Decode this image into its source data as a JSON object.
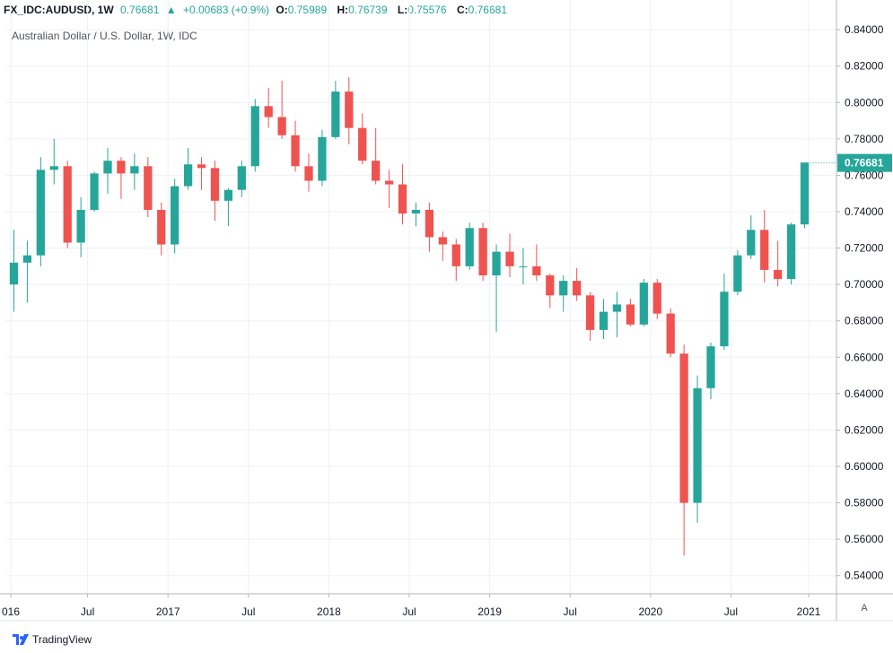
{
  "header": {
    "symbol": "FX_IDC:AUDUSD, 1W",
    "last": "0.76681",
    "change_arrow": "▲",
    "change": "+0.00683 (+0.9%)",
    "o_label": "O:",
    "o_value": "0.75989",
    "h_label": "H:",
    "h_value": "0.76739",
    "l_label": "L:",
    "l_value": "0.75576",
    "c_label": "C:",
    "c_value": "0.76681"
  },
  "colors": {
    "up": "#26a69a",
    "down": "#ef5350",
    "grid": "#eef0f3",
    "axis_text": "#131722"
  },
  "footer": {
    "brand": "TradingView",
    "scale_button": "A"
  },
  "chart_data": {
    "type": "candlestick",
    "title": "Australian Dollar / U.S. Dollar, 1W, IDC",
    "price_label": "0.76681",
    "y_ticks": [
      "0.84000",
      "0.82000",
      "0.80000",
      "0.78000",
      "0.76000",
      "0.74000",
      "0.72000",
      "0.70000",
      "0.68000",
      "0.66000",
      "0.64000",
      "0.62000",
      "0.60000",
      "0.58000",
      "0.56000",
      "0.54000"
    ],
    "x_ticks": [
      "016",
      "Jul",
      "2017",
      "Jul",
      "2018",
      "Jul",
      "2019",
      "Jul",
      "2020",
      "Jul",
      "2021"
    ],
    "ylim": [
      0.53,
      0.845
    ],
    "grid": true,
    "series": [
      {
        "date": "2016-01",
        "o": 0.7,
        "h": 0.73,
        "l": 0.685,
        "c": 0.712
      },
      {
        "date": "2016-02",
        "o": 0.712,
        "h": 0.724,
        "l": 0.69,
        "c": 0.716
      },
      {
        "date": "2016-03",
        "o": 0.716,
        "h": 0.77,
        "l": 0.71,
        "c": 0.763
      },
      {
        "date": "2016-04",
        "o": 0.763,
        "h": 0.78,
        "l": 0.755,
        "c": 0.765
      },
      {
        "date": "2016-05",
        "o": 0.765,
        "h": 0.768,
        "l": 0.72,
        "c": 0.723
      },
      {
        "date": "2016-06",
        "o": 0.723,
        "h": 0.748,
        "l": 0.715,
        "c": 0.741
      },
      {
        "date": "2016-07",
        "o": 0.741,
        "h": 0.762,
        "l": 0.74,
        "c": 0.761
      },
      {
        "date": "2016-08",
        "o": 0.761,
        "h": 0.775,
        "l": 0.75,
        "c": 0.768
      },
      {
        "date": "2016-09",
        "o": 0.768,
        "h": 0.77,
        "l": 0.747,
        "c": 0.761
      },
      {
        "date": "2016-10",
        "o": 0.761,
        "h": 0.772,
        "l": 0.752,
        "c": 0.765
      },
      {
        "date": "2016-11",
        "o": 0.765,
        "h": 0.77,
        "l": 0.737,
        "c": 0.741
      },
      {
        "date": "2016-12",
        "o": 0.741,
        "h": 0.745,
        "l": 0.716,
        "c": 0.722
      },
      {
        "date": "2017-01",
        "o": 0.722,
        "h": 0.758,
        "l": 0.717,
        "c": 0.754
      },
      {
        "date": "2017-02",
        "o": 0.754,
        "h": 0.775,
        "l": 0.752,
        "c": 0.766
      },
      {
        "date": "2017-03",
        "o": 0.766,
        "h": 0.77,
        "l": 0.752,
        "c": 0.764
      },
      {
        "date": "2017-04",
        "o": 0.764,
        "h": 0.768,
        "l": 0.735,
        "c": 0.746
      },
      {
        "date": "2017-05",
        "o": 0.746,
        "h": 0.753,
        "l": 0.732,
        "c": 0.752
      },
      {
        "date": "2017-06",
        "o": 0.752,
        "h": 0.768,
        "l": 0.748,
        "c": 0.765
      },
      {
        "date": "2017-07",
        "o": 0.765,
        "h": 0.802,
        "l": 0.762,
        "c": 0.798
      },
      {
        "date": "2017-08",
        "o": 0.798,
        "h": 0.808,
        "l": 0.786,
        "c": 0.792
      },
      {
        "date": "2017-09",
        "o": 0.792,
        "h": 0.812,
        "l": 0.78,
        "c": 0.782
      },
      {
        "date": "2017-10",
        "o": 0.782,
        "h": 0.79,
        "l": 0.762,
        "c": 0.765
      },
      {
        "date": "2017-11",
        "o": 0.765,
        "h": 0.772,
        "l": 0.751,
        "c": 0.757
      },
      {
        "date": "2017-12",
        "o": 0.757,
        "h": 0.785,
        "l": 0.754,
        "c": 0.781
      },
      {
        "date": "2018-01",
        "o": 0.781,
        "h": 0.812,
        "l": 0.78,
        "c": 0.806
      },
      {
        "date": "2018-02",
        "o": 0.806,
        "h": 0.814,
        "l": 0.777,
        "c": 0.786
      },
      {
        "date": "2018-03",
        "o": 0.786,
        "h": 0.794,
        "l": 0.766,
        "c": 0.768
      },
      {
        "date": "2018-04",
        "o": 0.768,
        "h": 0.786,
        "l": 0.755,
        "c": 0.757
      },
      {
        "date": "2018-05",
        "o": 0.757,
        "h": 0.763,
        "l": 0.742,
        "c": 0.755
      },
      {
        "date": "2018-06",
        "o": 0.755,
        "h": 0.766,
        "l": 0.733,
        "c": 0.739
      },
      {
        "date": "2018-07",
        "o": 0.739,
        "h": 0.745,
        "l": 0.732,
        "c": 0.741
      },
      {
        "date": "2018-08",
        "o": 0.741,
        "h": 0.745,
        "l": 0.718,
        "c": 0.726
      },
      {
        "date": "2018-09",
        "o": 0.726,
        "h": 0.729,
        "l": 0.713,
        "c": 0.722
      },
      {
        "date": "2018-10",
        "o": 0.722,
        "h": 0.725,
        "l": 0.702,
        "c": 0.71
      },
      {
        "date": "2018-11",
        "o": 0.71,
        "h": 0.734,
        "l": 0.708,
        "c": 0.731
      },
      {
        "date": "2018-12",
        "o": 0.731,
        "h": 0.734,
        "l": 0.702,
        "c": 0.705
      },
      {
        "date": "2019-01",
        "o": 0.705,
        "h": 0.722,
        "l": 0.674,
        "c": 0.718
      },
      {
        "date": "2019-02",
        "o": 0.718,
        "h": 0.728,
        "l": 0.704,
        "c": 0.71
      },
      {
        "date": "2019-03",
        "o": 0.71,
        "h": 0.72,
        "l": 0.7,
        "c": 0.71
      },
      {
        "date": "2019-04",
        "o": 0.71,
        "h": 0.722,
        "l": 0.702,
        "c": 0.705
      },
      {
        "date": "2019-05",
        "o": 0.705,
        "h": 0.706,
        "l": 0.687,
        "c": 0.694
      },
      {
        "date": "2019-06",
        "o": 0.694,
        "h": 0.705,
        "l": 0.685,
        "c": 0.702
      },
      {
        "date": "2019-07",
        "o": 0.702,
        "h": 0.709,
        "l": 0.691,
        "c": 0.694
      },
      {
        "date": "2019-08",
        "o": 0.694,
        "h": 0.696,
        "l": 0.669,
        "c": 0.675
      },
      {
        "date": "2019-09",
        "o": 0.675,
        "h": 0.692,
        "l": 0.67,
        "c": 0.685
      },
      {
        "date": "2019-10",
        "o": 0.685,
        "h": 0.696,
        "l": 0.671,
        "c": 0.689
      },
      {
        "date": "2019-11",
        "o": 0.689,
        "h": 0.692,
        "l": 0.677,
        "c": 0.678
      },
      {
        "date": "2019-12",
        "o": 0.678,
        "h": 0.703,
        "l": 0.677,
        "c": 0.701
      },
      {
        "date": "2020-01",
        "o": 0.701,
        "h": 0.703,
        "l": 0.681,
        "c": 0.684
      },
      {
        "date": "2020-02",
        "o": 0.684,
        "h": 0.687,
        "l": 0.66,
        "c": 0.662
      },
      {
        "date": "2020-03",
        "o": 0.662,
        "h": 0.667,
        "l": 0.551,
        "c": 0.58
      },
      {
        "date": "2020-04",
        "o": 0.58,
        "h": 0.65,
        "l": 0.569,
        "c": 0.643
      },
      {
        "date": "2020-05",
        "o": 0.643,
        "h": 0.668,
        "l": 0.637,
        "c": 0.666
      },
      {
        "date": "2020-06",
        "o": 0.666,
        "h": 0.706,
        "l": 0.664,
        "c": 0.696
      },
      {
        "date": "2020-07",
        "o": 0.696,
        "h": 0.719,
        "l": 0.694,
        "c": 0.716
      },
      {
        "date": "2020-08",
        "o": 0.716,
        "h": 0.738,
        "l": 0.714,
        "c": 0.73
      },
      {
        "date": "2020-09",
        "o": 0.73,
        "h": 0.741,
        "l": 0.701,
        "c": 0.708
      },
      {
        "date": "2020-10",
        "o": 0.708,
        "h": 0.724,
        "l": 0.699,
        "c": 0.703
      },
      {
        "date": "2020-11",
        "o": 0.703,
        "h": 0.734,
        "l": 0.7,
        "c": 0.733
      },
      {
        "date": "2020-12",
        "o": 0.733,
        "h": 0.767,
        "l": 0.731,
        "c": 0.767
      }
    ]
  }
}
